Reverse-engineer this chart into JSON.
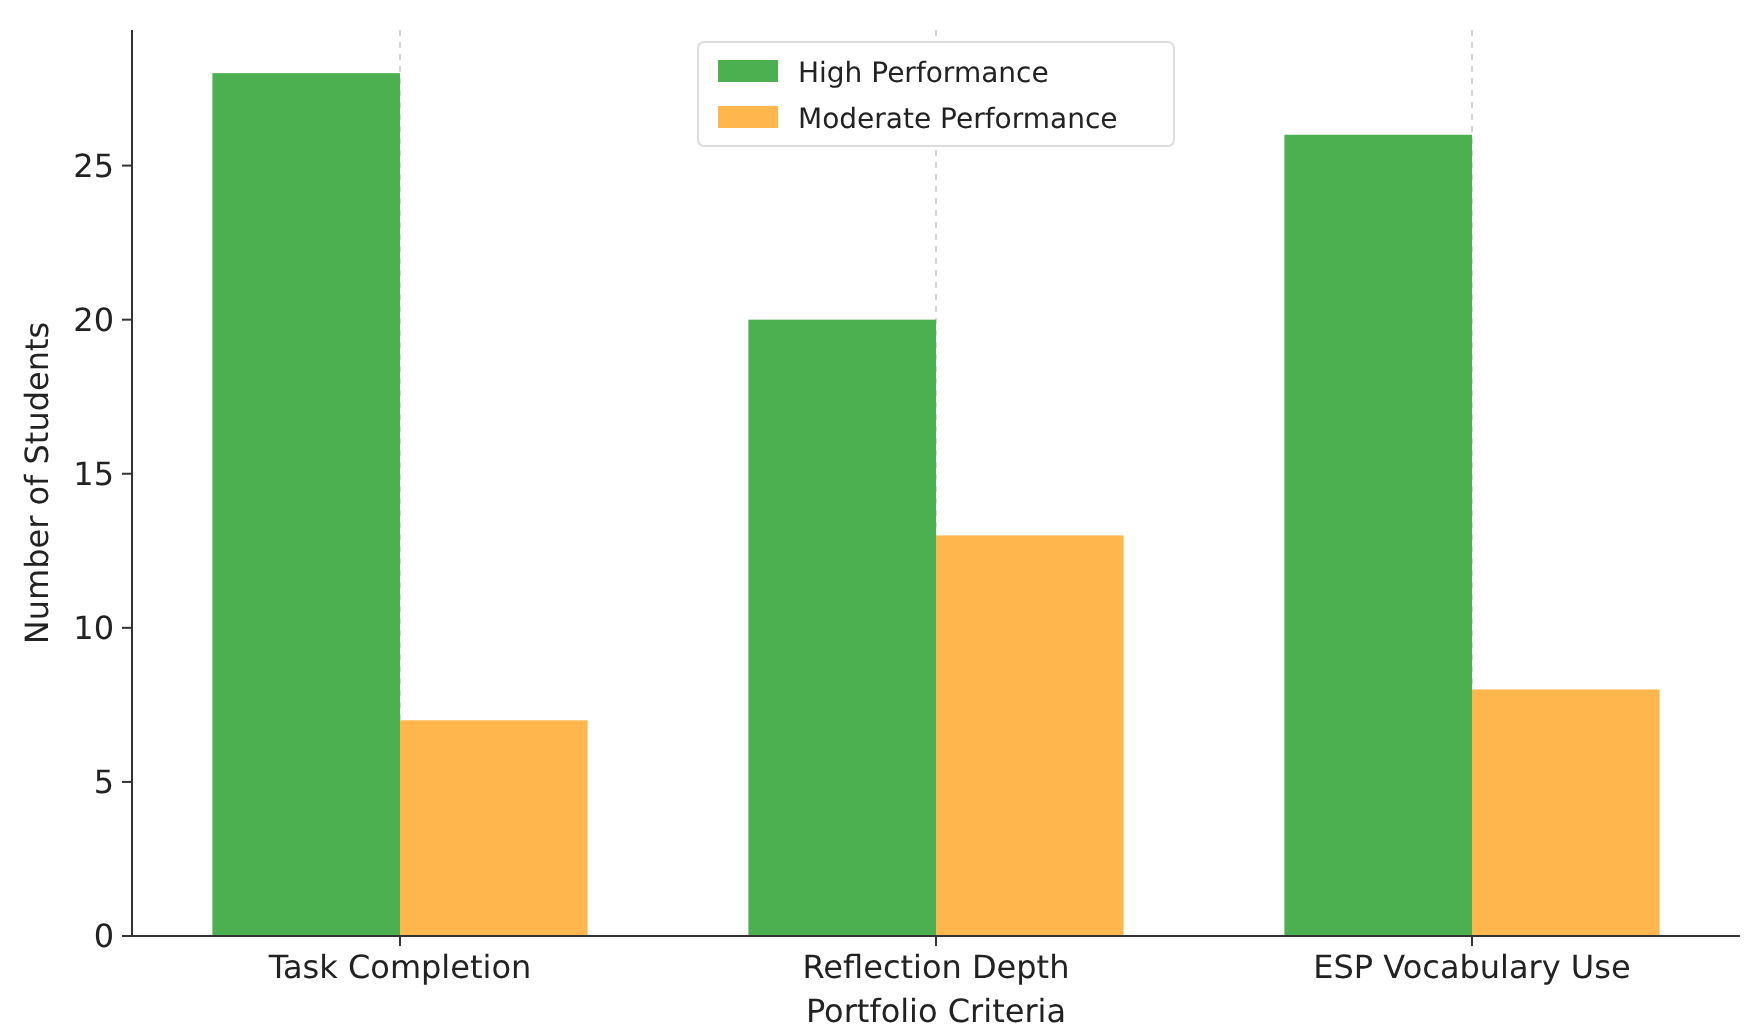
{
  "chart_data": {
    "type": "bar",
    "xlabel": "Portfolio Criteria",
    "ylabel": "Number of Students",
    "categories": [
      "Task Completion",
      "Reflection Depth",
      "ESP Vocabulary Use"
    ],
    "series": [
      {
        "name": "High Performance",
        "color": "#4caf50",
        "values": [
          28,
          20,
          26
        ]
      },
      {
        "name": "Moderate Performance",
        "color": "#ffb74d",
        "values": [
          7,
          13,
          8
        ]
      }
    ],
    "ylim": [
      0,
      29.4
    ],
    "yticks": [
      0,
      5,
      10,
      15,
      20,
      25
    ],
    "grid": "x",
    "legend": "top"
  }
}
